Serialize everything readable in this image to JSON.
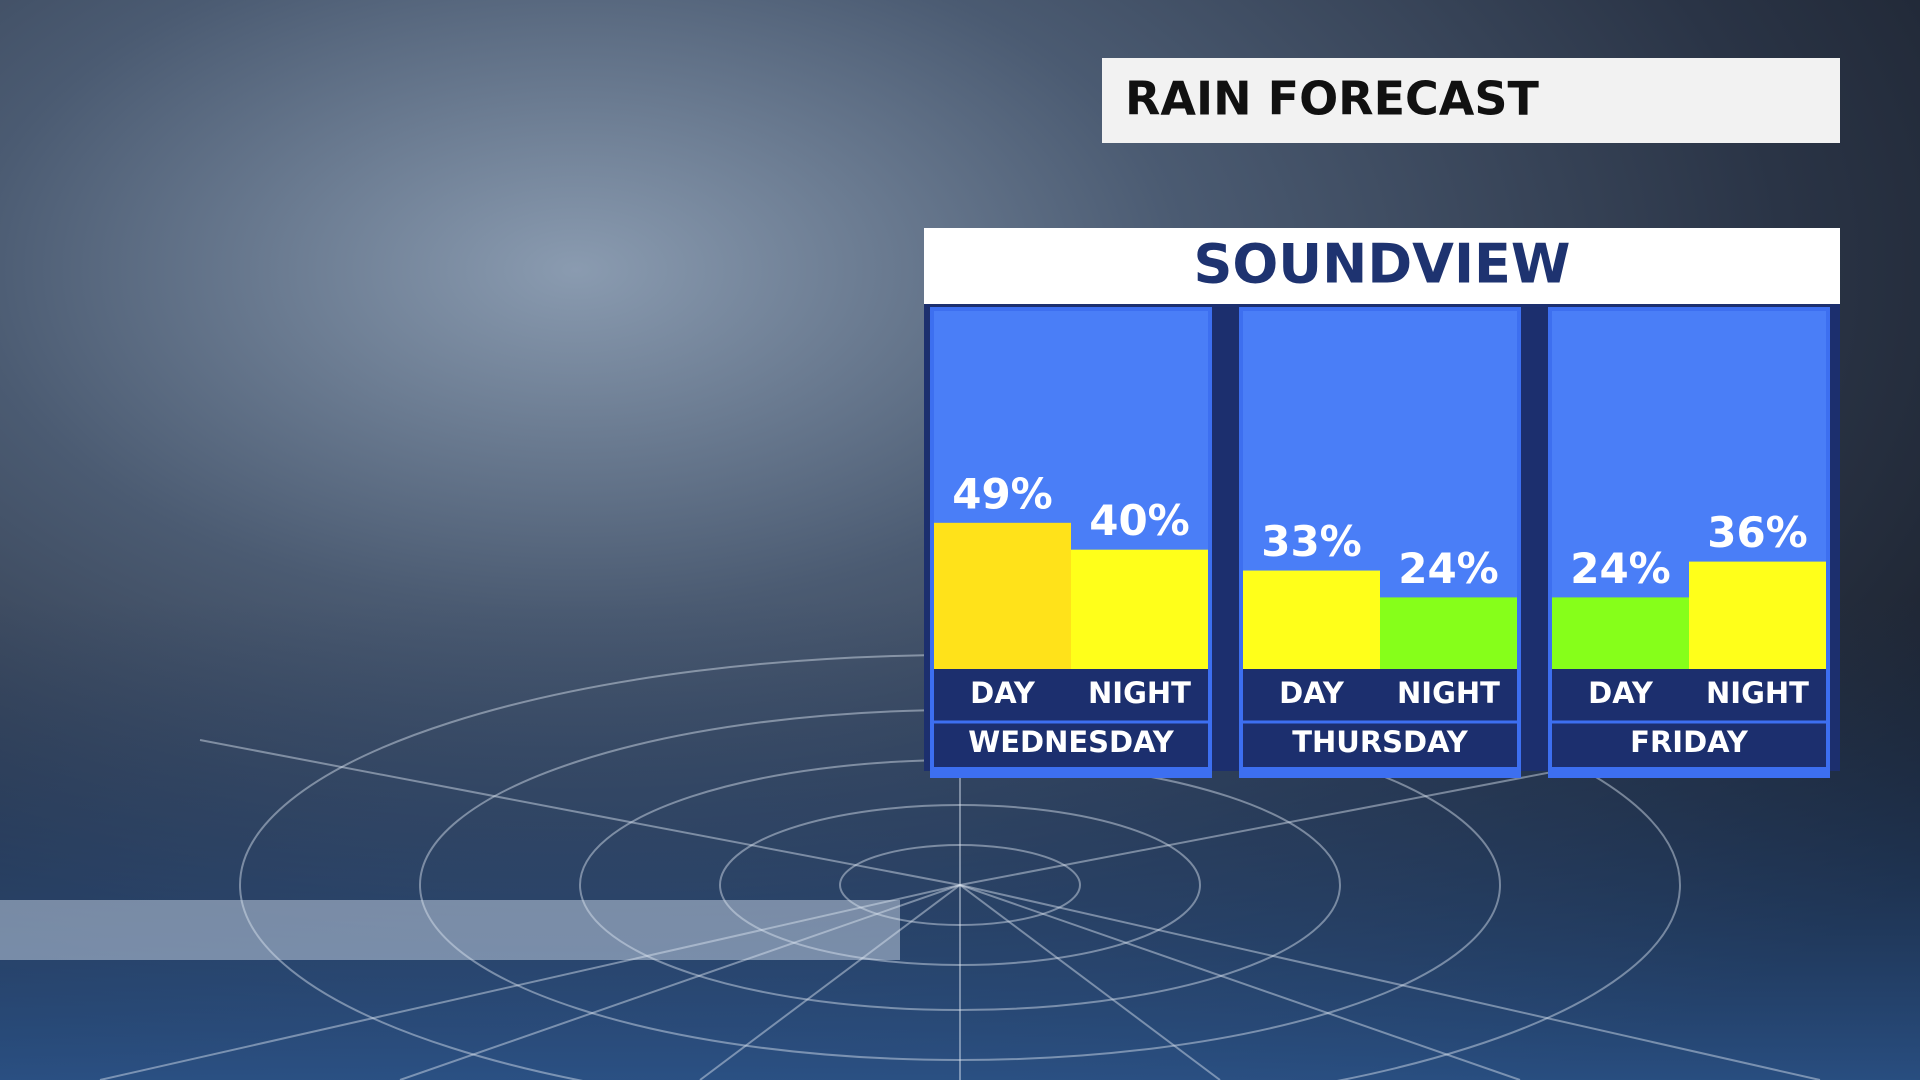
{
  "chart_data": {
    "type": "bar",
    "title": "RAIN FORECAST",
    "subtitle": "SOUNDVIEW",
    "groups": [
      "WEDNESDAY",
      "THURSDAY",
      "FRIDAY"
    ],
    "categories": [
      "DAY",
      "NIGHT",
      "DAY",
      "NIGHT",
      "DAY",
      "NIGHT"
    ],
    "values": [
      49,
      40,
      33,
      24,
      24,
      36
    ],
    "value_labels": [
      "49%",
      "40%",
      "33%",
      "24%",
      "24%",
      "36%"
    ],
    "colors": [
      "#ffe21a",
      "#ffff1a",
      "#ffff1a",
      "#86ff1a",
      "#86ff1a",
      "#ffff1a"
    ],
    "ylim": [
      0,
      120
    ]
  }
}
